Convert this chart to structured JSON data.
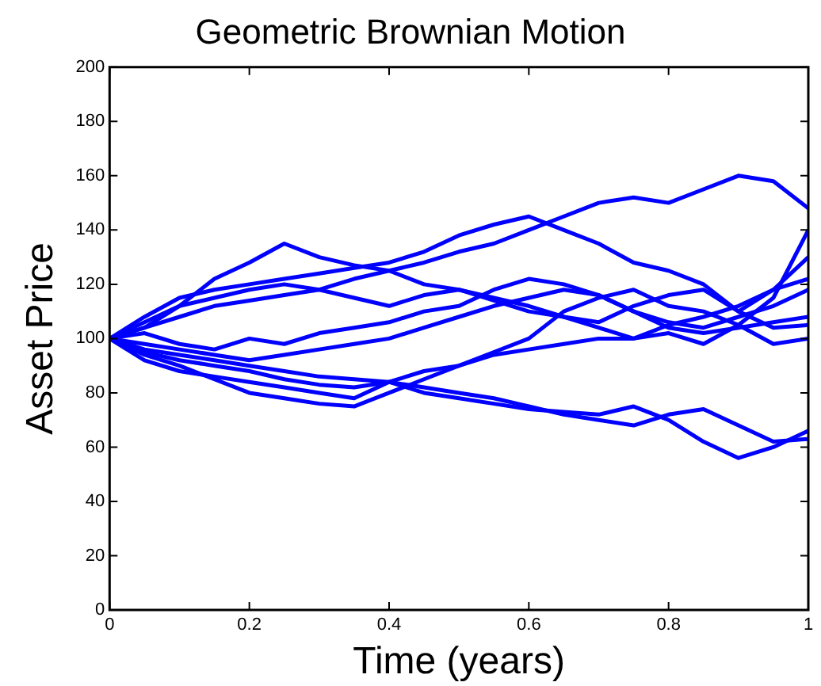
{
  "chart_data": {
    "type": "line",
    "title": "Geometric Brownian Motion",
    "xlabel": "Time (years)",
    "ylabel": "Asset Price",
    "x": [
      0,
      0.05,
      0.1,
      0.15,
      0.2,
      0.25,
      0.3,
      0.35,
      0.4,
      0.45,
      0.5,
      0.55,
      0.6,
      0.65,
      0.7,
      0.75,
      0.8,
      0.85,
      0.9,
      0.95,
      1
    ],
    "series": [
      {
        "color": "#0000ff",
        "values": [
          100,
          104,
          112,
          115,
          118,
          120,
          118,
          122,
          125,
          128,
          132,
          135,
          140,
          145,
          150,
          152,
          150,
          155,
          160,
          158,
          148
        ]
      },
      {
        "color": "#0000ff",
        "values": [
          100,
          106,
          112,
          122,
          128,
          135,
          130,
          127,
          125,
          120,
          118,
          115,
          112,
          108,
          104,
          100,
          102,
          98,
          105,
          115,
          140
        ]
      },
      {
        "color": "#0000ff",
        "values": [
          100,
          108,
          115,
          118,
          120,
          122,
          124,
          126,
          128,
          132,
          138,
          142,
          145,
          140,
          135,
          128,
          125,
          120,
          110,
          118,
          130
        ]
      },
      {
        "color": "#0000ff",
        "values": [
          100,
          96,
          94,
          92,
          90,
          88,
          86,
          85,
          84,
          82,
          80,
          78,
          75,
          72,
          70,
          68,
          72,
          74,
          68,
          62,
          63
        ]
      },
      {
        "color": "#0000ff",
        "values": [
          100,
          95,
          92,
          90,
          88,
          85,
          83,
          82,
          84,
          80,
          78,
          76,
          74,
          73,
          72,
          75,
          70,
          62,
          56,
          60,
          66
        ]
      },
      {
        "color": "#0000ff",
        "values": [
          100,
          94,
          90,
          85,
          80,
          78,
          76,
          75,
          80,
          85,
          90,
          95,
          100,
          110,
          115,
          118,
          112,
          110,
          105,
          98,
          100
        ]
      },
      {
        "color": "#0000ff",
        "values": [
          100,
          92,
          88,
          86,
          84,
          82,
          80,
          78,
          84,
          88,
          90,
          94,
          96,
          98,
          100,
          100,
          105,
          108,
          112,
          118,
          122
        ]
      },
      {
        "color": "#0000ff",
        "values": [
          100,
          102,
          98,
          96,
          100,
          98,
          102,
          104,
          106,
          110,
          112,
          118,
          122,
          120,
          116,
          110,
          104,
          102,
          104,
          106,
          108
        ]
      },
      {
        "color": "#0000ff",
        "values": [
          100,
          104,
          108,
          112,
          114,
          116,
          118,
          115,
          112,
          116,
          118,
          114,
          110,
          108,
          106,
          112,
          116,
          118,
          110,
          104,
          105
        ]
      },
      {
        "color": "#0000ff",
        "values": [
          100,
          98,
          96,
          94,
          92,
          94,
          96,
          98,
          100,
          104,
          108,
          112,
          115,
          118,
          116,
          110,
          106,
          104,
          108,
          112,
          118
        ]
      }
    ],
    "xlim": [
      0,
      1
    ],
    "xticks": [
      0,
      0.2,
      0.4,
      0.6,
      0.8,
      1
    ],
    "ylim": [
      0,
      200
    ],
    "yticks": [
      0,
      20,
      40,
      60,
      80,
      100,
      120,
      140,
      160,
      180,
      200
    ],
    "grid": false,
    "legend": false,
    "marker": "none",
    "line_style": "solid"
  }
}
